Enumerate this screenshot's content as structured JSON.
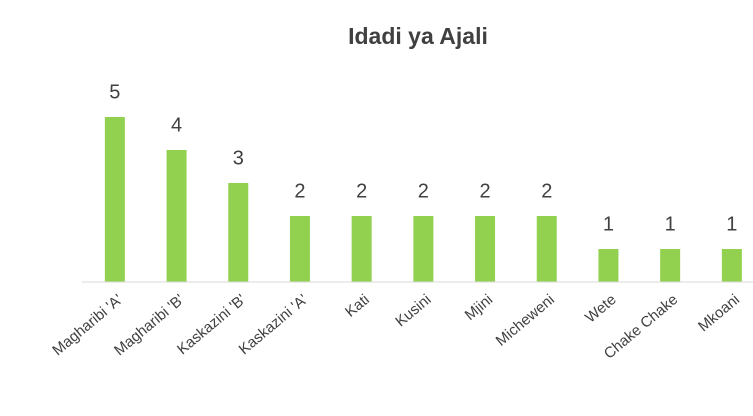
{
  "chart_data": {
    "type": "bar",
    "title": "Idadi ya Ajali",
    "categories": [
      "Magharibi 'A'",
      "Magharibi 'B'",
      "Kaskazini 'B'",
      "Kaskazini 'A'",
      "Kati",
      "Kusini",
      "Mjini",
      "Micheweni",
      "Wete",
      "Chake Chake",
      "Mkoani"
    ],
    "values": [
      5,
      4,
      3,
      2,
      2,
      2,
      2,
      2,
      1,
      1,
      1
    ],
    "color": "#92d050",
    "ylim": [
      0,
      5
    ]
  }
}
